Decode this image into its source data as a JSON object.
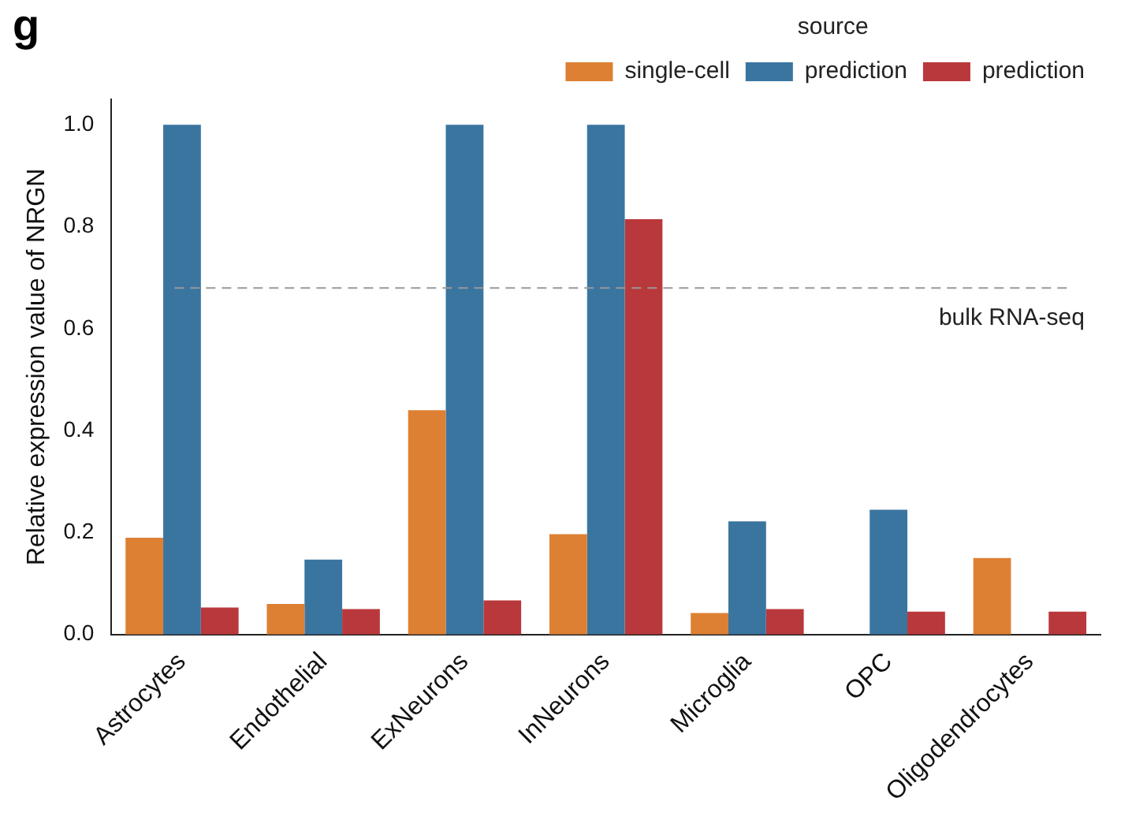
{
  "chart_data": {
    "type": "bar",
    "ylabel": "Relative expression value of NRGN",
    "legend_title": "source",
    "categories": [
      "Astrocytes",
      "Endothelial",
      "ExNeurons",
      "InNeurons",
      "Microglia",
      "OPC",
      "Oligodendrocytes"
    ],
    "series": [
      {
        "name": "single-cell",
        "color": "#dd8033",
        "values": [
          0.19,
          0.06,
          0.44,
          0.197,
          0.042,
          null,
          0.15
        ]
      },
      {
        "name": "prediction",
        "color": "#3a75a0",
        "values": [
          1.0,
          0.147,
          1.0,
          1.0,
          0.222,
          0.245,
          null
        ]
      },
      {
        "name": "prediction",
        "color": "#b9383b",
        "values": [
          0.053,
          0.05,
          0.067,
          0.815,
          0.05,
          0.045,
          0.045
        ]
      }
    ],
    "ylim": [
      0,
      1.05
    ],
    "yticks": [
      {
        "value": 0,
        "label": "0.0"
      },
      {
        "value": 0.2,
        "label": "0.2"
      },
      {
        "value": 0.4,
        "label": "0.4"
      },
      {
        "value": 0.6,
        "label": "0.6"
      },
      {
        "value": 0.8,
        "label": "0.8"
      },
      {
        "value": 1,
        "label": "1.0"
      }
    ],
    "grid": false,
    "legend": "top right",
    "ref_lines": [
      {
        "axis": "y",
        "value": 0.68,
        "label": "bulk RNA-seq",
        "color": "#999999",
        "line_style": "dashed"
      }
    ],
    "annotations": [
      "g"
    ]
  }
}
